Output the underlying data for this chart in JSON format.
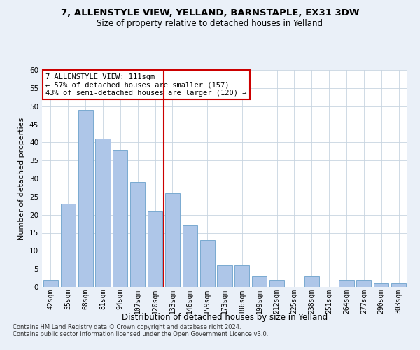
{
  "title1": "7, ALLENSTYLE VIEW, YELLAND, BARNSTAPLE, EX31 3DW",
  "title2": "Size of property relative to detached houses in Yelland",
  "xlabel": "Distribution of detached houses by size in Yelland",
  "ylabel": "Number of detached properties",
  "categories": [
    "42sqm",
    "55sqm",
    "68sqm",
    "81sqm",
    "94sqm",
    "107sqm",
    "120sqm",
    "133sqm",
    "146sqm",
    "159sqm",
    "173sqm",
    "186sqm",
    "199sqm",
    "212sqm",
    "225sqm",
    "238sqm",
    "251sqm",
    "264sqm",
    "277sqm",
    "290sqm",
    "303sqm"
  ],
  "values": [
    2,
    23,
    49,
    41,
    38,
    29,
    21,
    26,
    17,
    13,
    6,
    6,
    3,
    2,
    0,
    3,
    0,
    2,
    2,
    1,
    1
  ],
  "bar_color": "#aec6e8",
  "bar_edge_color": "#7aaad0",
  "vline_color": "#cc0000",
  "vline_index": 6.5,
  "annotation_text": "7 ALLENSTYLE VIEW: 111sqm\n← 57% of detached houses are smaller (157)\n43% of semi-detached houses are larger (120) →",
  "annotation_box_color": "#ffffff",
  "annotation_box_edge": "#cc0000",
  "footer1": "Contains HM Land Registry data © Crown copyright and database right 2024.",
  "footer2": "Contains public sector information licensed under the Open Government Licence v3.0.",
  "bg_color": "#eaf0f8",
  "plot_bg_color": "#ffffff",
  "grid_color": "#c8d4e0",
  "ylim": [
    0,
    60
  ],
  "yticks": [
    0,
    5,
    10,
    15,
    20,
    25,
    30,
    35,
    40,
    45,
    50,
    55,
    60
  ]
}
